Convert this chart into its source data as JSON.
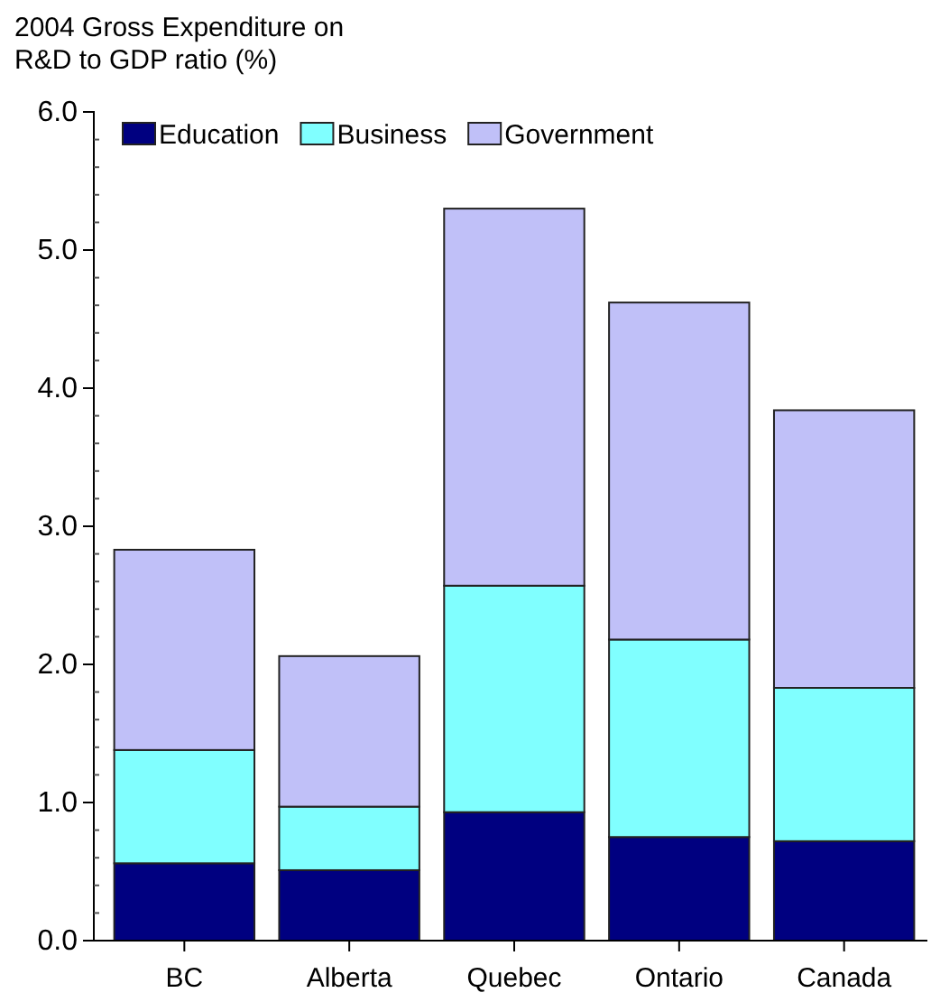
{
  "chart_data": {
    "type": "bar",
    "title": "2004 Gross Expenditure on R&D to GDP ratio (%)",
    "stacked": true,
    "categories": [
      "BC",
      "Alberta",
      "Quebec",
      "Ontario",
      "Canada"
    ],
    "series": [
      {
        "name": "Education",
        "color": "#000080",
        "values": [
          0.56,
          0.51,
          0.93,
          0.75,
          0.72
        ]
      },
      {
        "name": "Business",
        "color": "#80ffff",
        "values": [
          0.82,
          0.46,
          1.64,
          1.43,
          1.11
        ]
      },
      {
        "name": "Government",
        "color": "#c0c0f8",
        "values": [
          1.45,
          1.09,
          2.73,
          2.44,
          2.01
        ]
      }
    ],
    "ylim": [
      0,
      6
    ],
    "yticks": [
      {
        "value": 0,
        "label": "0.0"
      },
      {
        "value": 1,
        "label": "1.0"
      },
      {
        "value": 2,
        "label": "2.0"
      },
      {
        "value": 3,
        "label": "3.0"
      },
      {
        "value": 4,
        "label": "4.0"
      },
      {
        "value": 5,
        "label": "5.0"
      },
      {
        "value": 6,
        "label": "6.0"
      }
    ],
    "legend": "top left",
    "grid": false
  }
}
